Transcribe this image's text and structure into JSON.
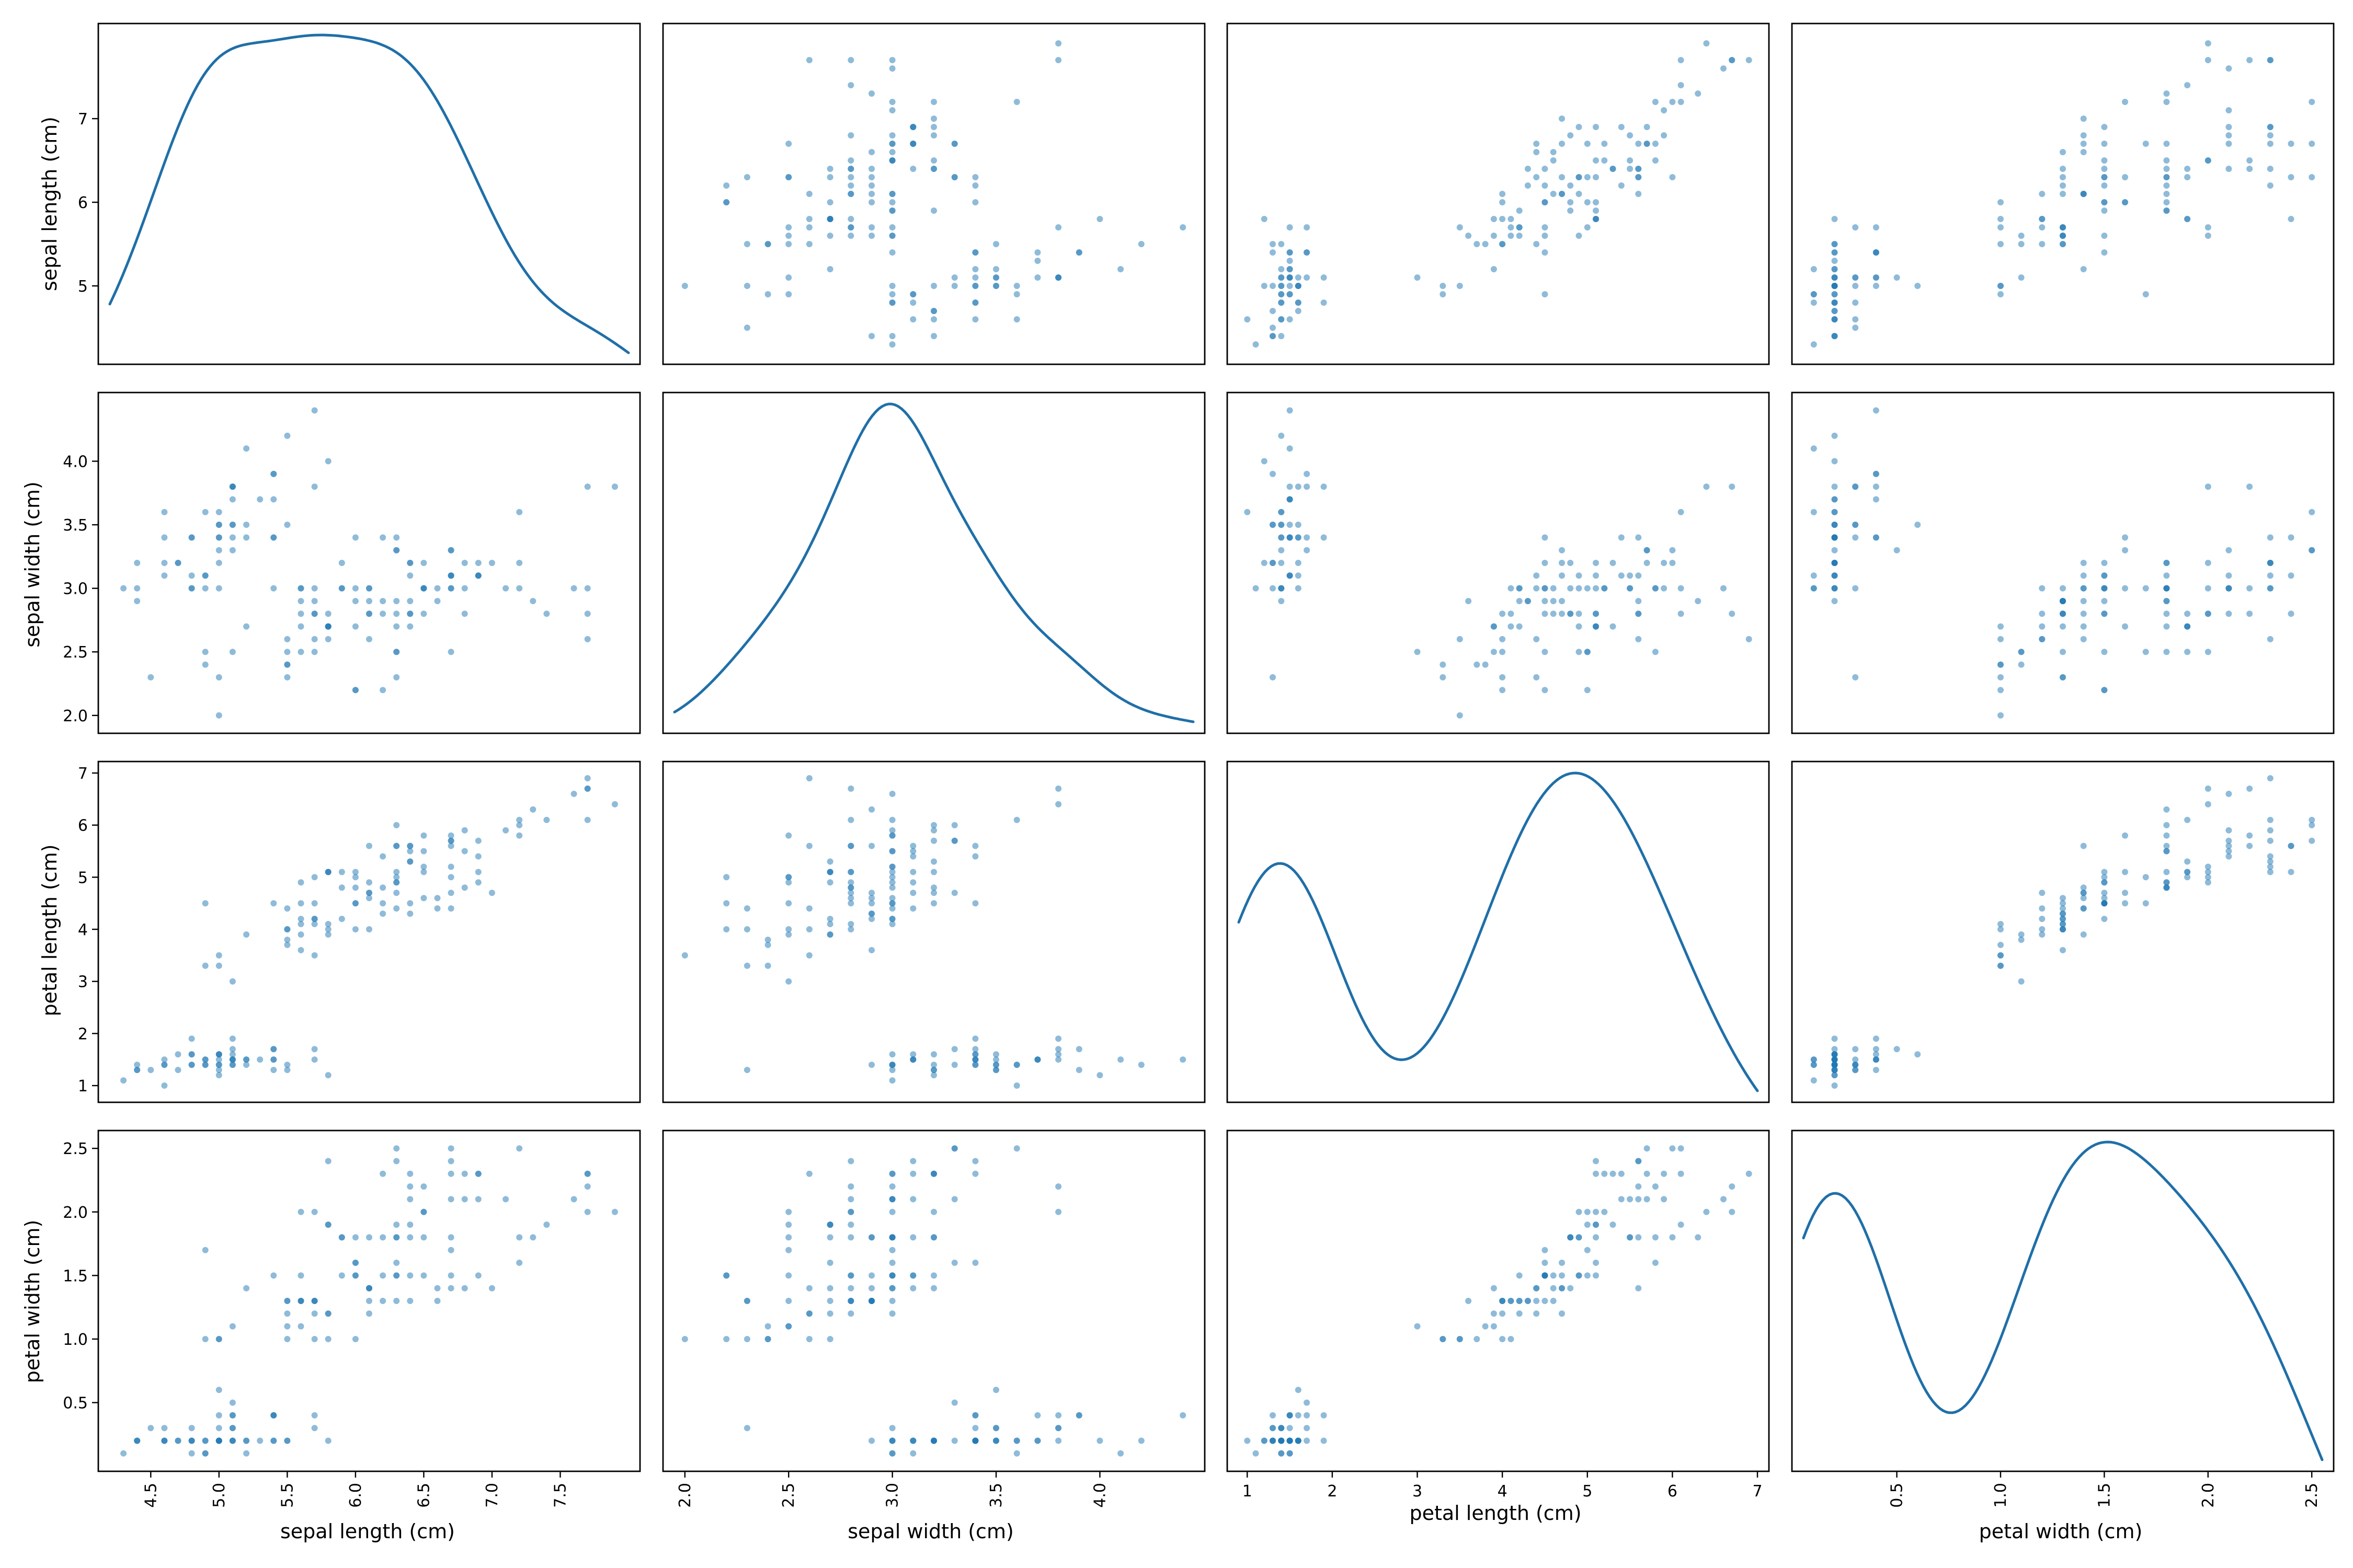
{
  "figure": {
    "background": "#ffffff"
  },
  "chart_data": {
    "type": "scatter",
    "subtype": "scatter-matrix",
    "title": "",
    "diagonal": "kde",
    "point_color": "#1f77b4",
    "point_alpha": 0.5,
    "kde_color": "#1f6fa8",
    "grid": false,
    "legend": "none",
    "variables": [
      {
        "name": "sepal length (cm)",
        "label": "sepal length (cm)",
        "range": [
          4.2,
          8.0
        ],
        "ticks": [
          4.5,
          5.0,
          5.5,
          6.0,
          6.5,
          7.0,
          7.5
        ],
        "tick_labels": [
          "4.5",
          "5.0",
          "5.5",
          "6.0",
          "6.5",
          "7.0",
          "7.5"
        ],
        "left_ticks": [
          5,
          6,
          7
        ],
        "left_tick_labels": [
          "5",
          "6",
          "7"
        ]
      },
      {
        "name": "sepal width (cm)",
        "label": "sepal width (cm)",
        "range": [
          1.95,
          4.45
        ],
        "ticks": [
          2.0,
          2.5,
          3.0,
          3.5,
          4.0
        ],
        "tick_labels": [
          "2.0",
          "2.5",
          "3.0",
          "3.5",
          "4.0"
        ],
        "left_ticks": [
          2.0,
          2.5,
          3.0,
          3.5,
          4.0
        ],
        "left_tick_labels": [
          "2.0",
          "2.5",
          "3.0",
          "3.5",
          "4.0"
        ]
      },
      {
        "name": "petal length (cm)",
        "label": "petal length (cm)",
        "range": [
          0.9,
          7.0
        ],
        "ticks": [
          1,
          2,
          3,
          4,
          5,
          6,
          7
        ],
        "tick_labels": [
          "1",
          "2",
          "3",
          "4",
          "5",
          "6",
          "7"
        ],
        "left_ticks": [
          1,
          2,
          3,
          4,
          5,
          6,
          7
        ],
        "left_tick_labels": [
          "1",
          "2",
          "3",
          "4",
          "5",
          "6",
          "7"
        ]
      },
      {
        "name": "petal width (cm)",
        "label": "petal width (cm)",
        "range": [
          0.05,
          2.55
        ],
        "ticks": [
          0.5,
          1.0,
          1.5,
          2.0,
          2.5
        ],
        "tick_labels": [
          "0.5",
          "1.0",
          "1.5",
          "2.0",
          "2.5"
        ],
        "left_ticks": [
          0.5,
          1.0,
          1.5,
          2.0,
          2.5
        ],
        "left_tick_labels": [
          "0.5",
          "1.0",
          "1.5",
          "2.0",
          "2.5"
        ]
      }
    ],
    "columns": [
      "sepal length (cm)",
      "sepal width (cm)",
      "petal length (cm)",
      "petal width (cm)"
    ],
    "rows": [
      [
        5.1,
        3.5,
        1.4,
        0.2
      ],
      [
        4.9,
        3.0,
        1.4,
        0.2
      ],
      [
        4.7,
        3.2,
        1.3,
        0.2
      ],
      [
        4.6,
        3.1,
        1.5,
        0.2
      ],
      [
        5.0,
        3.6,
        1.4,
        0.2
      ],
      [
        5.4,
        3.9,
        1.7,
        0.4
      ],
      [
        4.6,
        3.4,
        1.4,
        0.3
      ],
      [
        5.0,
        3.4,
        1.5,
        0.2
      ],
      [
        4.4,
        2.9,
        1.4,
        0.2
      ],
      [
        4.9,
        3.1,
        1.5,
        0.1
      ],
      [
        5.4,
        3.7,
        1.5,
        0.2
      ],
      [
        4.8,
        3.4,
        1.6,
        0.2
      ],
      [
        4.8,
        3.0,
        1.4,
        0.1
      ],
      [
        4.3,
        3.0,
        1.1,
        0.1
      ],
      [
        5.8,
        4.0,
        1.2,
        0.2
      ],
      [
        5.7,
        4.4,
        1.5,
        0.4
      ],
      [
        5.4,
        3.9,
        1.3,
        0.4
      ],
      [
        5.1,
        3.5,
        1.4,
        0.3
      ],
      [
        5.7,
        3.8,
        1.7,
        0.3
      ],
      [
        5.1,
        3.8,
        1.5,
        0.3
      ],
      [
        5.4,
        3.4,
        1.7,
        0.2
      ],
      [
        5.1,
        3.7,
        1.5,
        0.4
      ],
      [
        4.6,
        3.6,
        1.0,
        0.2
      ],
      [
        5.1,
        3.3,
        1.7,
        0.5
      ],
      [
        4.8,
        3.4,
        1.9,
        0.2
      ],
      [
        5.0,
        3.0,
        1.6,
        0.2
      ],
      [
        5.0,
        3.4,
        1.6,
        0.4
      ],
      [
        5.2,
        3.5,
        1.5,
        0.2
      ],
      [
        5.2,
        3.4,
        1.4,
        0.2
      ],
      [
        4.7,
        3.2,
        1.6,
        0.2
      ],
      [
        4.8,
        3.1,
        1.6,
        0.2
      ],
      [
        5.4,
        3.4,
        1.5,
        0.4
      ],
      [
        5.2,
        4.1,
        1.5,
        0.1
      ],
      [
        5.5,
        4.2,
        1.4,
        0.2
      ],
      [
        4.9,
        3.1,
        1.5,
        0.2
      ],
      [
        5.0,
        3.2,
        1.2,
        0.2
      ],
      [
        5.5,
        3.5,
        1.3,
        0.2
      ],
      [
        4.9,
        3.6,
        1.4,
        0.1
      ],
      [
        4.4,
        3.0,
        1.3,
        0.2
      ],
      [
        5.1,
        3.4,
        1.5,
        0.2
      ],
      [
        5.0,
        3.5,
        1.3,
        0.3
      ],
      [
        4.5,
        2.3,
        1.3,
        0.3
      ],
      [
        4.4,
        3.2,
        1.3,
        0.2
      ],
      [
        5.0,
        3.5,
        1.6,
        0.6
      ],
      [
        5.1,
        3.8,
        1.9,
        0.4
      ],
      [
        4.8,
        3.0,
        1.4,
        0.3
      ],
      [
        5.1,
        3.8,
        1.6,
        0.2
      ],
      [
        4.6,
        3.2,
        1.4,
        0.2
      ],
      [
        5.3,
        3.7,
        1.5,
        0.2
      ],
      [
        5.0,
        3.3,
        1.4,
        0.2
      ],
      [
        7.0,
        3.2,
        4.7,
        1.4
      ],
      [
        6.4,
        3.2,
        4.5,
        1.5
      ],
      [
        6.9,
        3.1,
        4.9,
        1.5
      ],
      [
        5.5,
        2.3,
        4.0,
        1.3
      ],
      [
        6.5,
        2.8,
        4.6,
        1.5
      ],
      [
        5.7,
        2.8,
        4.5,
        1.3
      ],
      [
        6.3,
        3.3,
        4.7,
        1.6
      ],
      [
        4.9,
        2.4,
        3.3,
        1.0
      ],
      [
        6.6,
        2.9,
        4.6,
        1.3
      ],
      [
        5.2,
        2.7,
        3.9,
        1.4
      ],
      [
        5.0,
        2.0,
        3.5,
        1.0
      ],
      [
        5.9,
        3.0,
        4.2,
        1.5
      ],
      [
        6.0,
        2.2,
        4.0,
        1.0
      ],
      [
        6.1,
        2.9,
        4.7,
        1.4
      ],
      [
        5.6,
        2.9,
        3.6,
        1.3
      ],
      [
        6.7,
        3.1,
        4.4,
        1.4
      ],
      [
        5.6,
        3.0,
        4.5,
        1.5
      ],
      [
        5.8,
        2.7,
        4.1,
        1.0
      ],
      [
        6.2,
        2.2,
        4.5,
        1.5
      ],
      [
        5.6,
        2.5,
        3.9,
        1.1
      ],
      [
        5.9,
        3.2,
        4.8,
        1.8
      ],
      [
        6.1,
        2.8,
        4.0,
        1.3
      ],
      [
        6.3,
        2.5,
        4.9,
        1.5
      ],
      [
        6.1,
        2.8,
        4.7,
        1.2
      ],
      [
        6.4,
        2.9,
        4.3,
        1.3
      ],
      [
        6.6,
        3.0,
        4.4,
        1.4
      ],
      [
        6.8,
        2.8,
        4.8,
        1.4
      ],
      [
        6.7,
        3.0,
        5.0,
        1.7
      ],
      [
        6.0,
        2.9,
        4.5,
        1.5
      ],
      [
        5.7,
        2.6,
        3.5,
        1.0
      ],
      [
        5.5,
        2.4,
        3.8,
        1.1
      ],
      [
        5.5,
        2.4,
        3.7,
        1.0
      ],
      [
        5.8,
        2.7,
        3.9,
        1.2
      ],
      [
        6.0,
        2.7,
        5.1,
        1.6
      ],
      [
        5.4,
        3.0,
        4.5,
        1.5
      ],
      [
        6.0,
        3.4,
        4.5,
        1.6
      ],
      [
        6.7,
        3.1,
        4.7,
        1.5
      ],
      [
        6.3,
        2.3,
        4.4,
        1.3
      ],
      [
        5.6,
        3.0,
        4.1,
        1.3
      ],
      [
        5.5,
        2.5,
        4.0,
        1.3
      ],
      [
        5.5,
        2.6,
        4.4,
        1.2
      ],
      [
        6.1,
        3.0,
        4.6,
        1.4
      ],
      [
        5.8,
        2.6,
        4.0,
        1.2
      ],
      [
        5.0,
        2.3,
        3.3,
        1.0
      ],
      [
        5.6,
        2.7,
        4.2,
        1.3
      ],
      [
        5.7,
        3.0,
        4.2,
        1.2
      ],
      [
        5.7,
        2.9,
        4.2,
        1.3
      ],
      [
        6.2,
        2.9,
        4.3,
        1.3
      ],
      [
        5.1,
        2.5,
        3.0,
        1.1
      ],
      [
        5.7,
        2.8,
        4.1,
        1.3
      ],
      [
        6.3,
        3.3,
        6.0,
        2.5
      ],
      [
        5.8,
        2.7,
        5.1,
        1.9
      ],
      [
        7.1,
        3.0,
        5.9,
        2.1
      ],
      [
        6.3,
        2.9,
        5.6,
        1.8
      ],
      [
        6.5,
        3.0,
        5.8,
        2.2
      ],
      [
        7.6,
        3.0,
        6.6,
        2.1
      ],
      [
        4.9,
        2.5,
        4.5,
        1.7
      ],
      [
        7.3,
        2.9,
        6.3,
        1.8
      ],
      [
        6.7,
        2.5,
        5.8,
        1.8
      ],
      [
        7.2,
        3.6,
        6.1,
        2.5
      ],
      [
        6.5,
        3.2,
        5.1,
        2.0
      ],
      [
        6.4,
        2.7,
        5.3,
        1.9
      ],
      [
        6.8,
        3.0,
        5.5,
        2.1
      ],
      [
        5.7,
        2.5,
        5.0,
        2.0
      ],
      [
        5.8,
        2.8,
        5.1,
        2.4
      ],
      [
        6.4,
        3.2,
        5.3,
        2.3
      ],
      [
        6.5,
        3.0,
        5.5,
        1.8
      ],
      [
        7.7,
        3.8,
        6.7,
        2.2
      ],
      [
        7.7,
        2.6,
        6.9,
        2.3
      ],
      [
        6.0,
        2.2,
        5.0,
        1.5
      ],
      [
        6.9,
        3.2,
        5.7,
        2.3
      ],
      [
        5.6,
        2.8,
        4.9,
        2.0
      ],
      [
        7.7,
        2.8,
        6.7,
        2.0
      ],
      [
        6.3,
        2.7,
        4.9,
        1.8
      ],
      [
        6.7,
        3.3,
        5.7,
        2.1
      ],
      [
        7.2,
        3.2,
        6.0,
        1.8
      ],
      [
        6.2,
        2.8,
        4.8,
        1.8
      ],
      [
        6.1,
        3.0,
        4.9,
        1.8
      ],
      [
        6.4,
        2.8,
        5.6,
        2.1
      ],
      [
        7.2,
        3.0,
        5.8,
        1.6
      ],
      [
        7.4,
        2.8,
        6.1,
        1.9
      ],
      [
        7.9,
        3.8,
        6.4,
        2.0
      ],
      [
        6.4,
        2.8,
        5.6,
        2.2
      ],
      [
        6.3,
        2.8,
        5.1,
        1.5
      ],
      [
        6.1,
        2.6,
        5.6,
        1.4
      ],
      [
        7.7,
        3.0,
        6.1,
        2.3
      ],
      [
        6.3,
        3.4,
        5.6,
        2.4
      ],
      [
        6.4,
        3.1,
        5.5,
        1.8
      ],
      [
        6.0,
        3.0,
        4.8,
        1.8
      ],
      [
        6.9,
        3.1,
        5.4,
        2.1
      ],
      [
        6.7,
        3.1,
        5.6,
        2.4
      ],
      [
        6.9,
        3.1,
        5.1,
        2.3
      ],
      [
        5.8,
        2.7,
        5.1,
        1.9
      ],
      [
        6.8,
        3.2,
        5.9,
        2.3
      ],
      [
        6.7,
        3.3,
        5.7,
        2.5
      ],
      [
        6.7,
        3.0,
        5.2,
        2.3
      ],
      [
        6.3,
        2.5,
        5.0,
        1.9
      ],
      [
        6.5,
        3.0,
        5.2,
        2.0
      ],
      [
        6.2,
        3.4,
        5.4,
        2.3
      ],
      [
        5.9,
        3.0,
        5.1,
        1.8
      ]
    ]
  }
}
